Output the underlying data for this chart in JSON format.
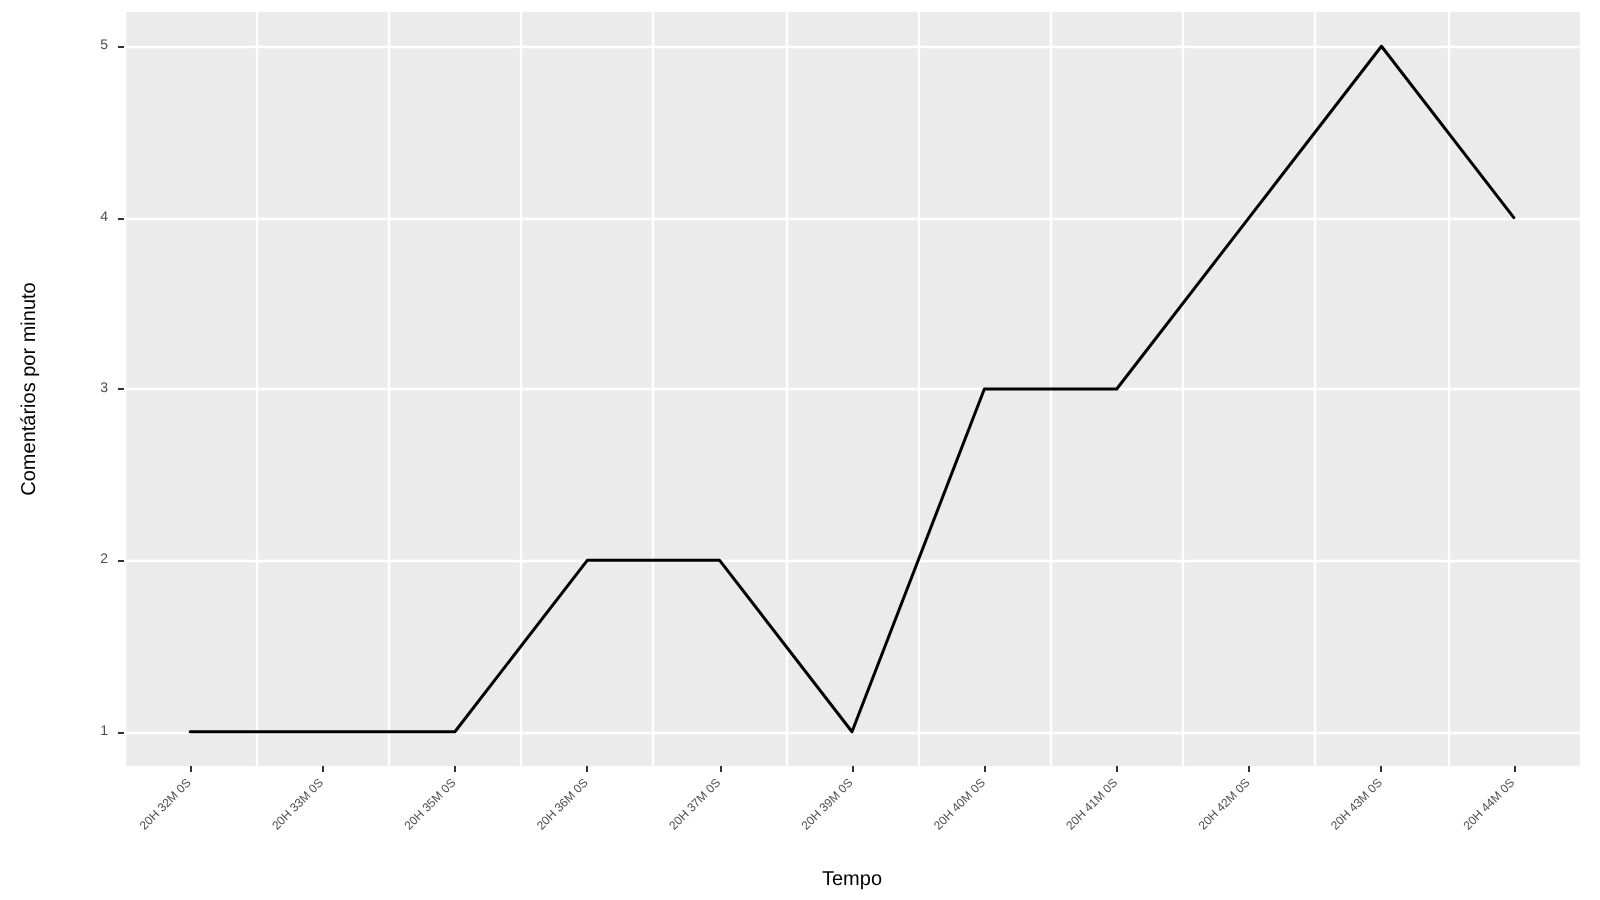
{
  "chart_data": {
    "type": "line",
    "xlabel": "Tempo",
    "ylabel": "Comentários por minuto",
    "categories": [
      "20H 32M 0S",
      "20H 33M 0S",
      "20H 35M 0S",
      "20H 36M 0S",
      "20H 37M 0S",
      "20H 39M 0S",
      "20H 40M 0S",
      "20H 41M 0S",
      "20H 42M 0S",
      "20H 43M 0S",
      "20H 44M 0S"
    ],
    "series": [
      {
        "color": "#000000",
        "values": [
          1,
          1,
          1,
          2,
          2,
          1,
          3,
          3,
          4,
          5,
          4
        ]
      }
    ],
    "ylim": [
      0.8,
      5.2
    ],
    "yticks": [
      1,
      2,
      3,
      4,
      5
    ],
    "grid": true,
    "marker": "none",
    "line_style": "solid"
  }
}
